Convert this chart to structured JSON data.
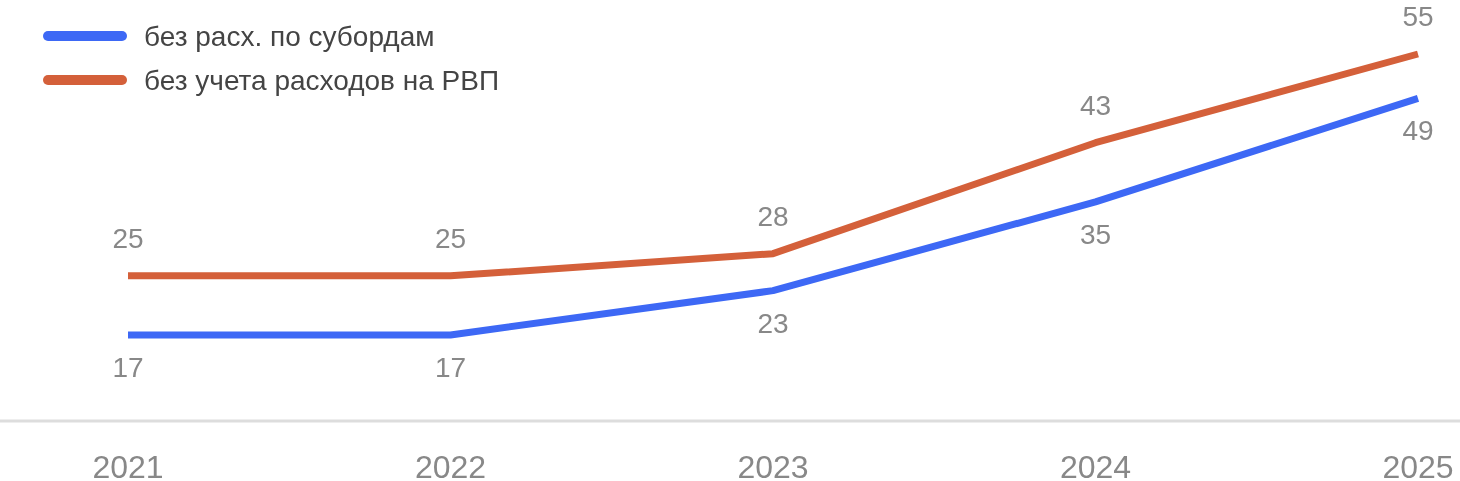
{
  "chart_data": {
    "type": "line",
    "categories": [
      "2021",
      "2022",
      "2023",
      "2024",
      "2025"
    ],
    "series": [
      {
        "name": "без расх. по субордам",
        "color": "#3d68f5",
        "values": [
          17,
          17,
          23,
          35,
          49
        ]
      },
      {
        "name": "без учета расходов на РВП",
        "color": "#d4603a",
        "values": [
          25,
          25,
          28,
          43,
          55
        ]
      }
    ],
    "data_labels": true,
    "legend": "top left"
  }
}
